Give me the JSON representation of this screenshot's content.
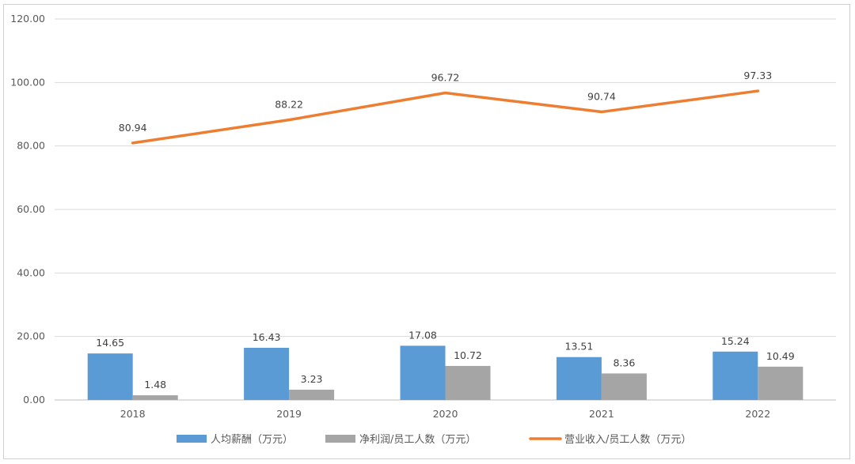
{
  "chart_data": {
    "type": "bar",
    "categories": [
      "2018",
      "2019",
      "2020",
      "2021",
      "2022"
    ],
    "series": [
      {
        "name": "人均薪酬（万元）",
        "kind": "bar",
        "color": "#5b9bd5",
        "values": [
          14.65,
          16.43,
          17.08,
          13.51,
          15.24
        ],
        "labels": [
          "14.65",
          "16.43",
          "17.08",
          "13.51",
          "15.24"
        ]
      },
      {
        "name": "净利润/员工人数（万元）",
        "kind": "bar",
        "color": "#a5a5a5",
        "values": [
          1.48,
          3.23,
          10.72,
          8.36,
          10.49
        ],
        "labels": [
          "1.48",
          "3.23",
          "10.72",
          "8.36",
          "10.49"
        ]
      },
      {
        "name": "营业收入/员工人数（万元）",
        "kind": "line",
        "color": "#ed7d31",
        "values": [
          80.94,
          88.22,
          96.72,
          90.74,
          97.33
        ],
        "labels": [
          "80.94",
          "88.22",
          "96.72",
          "90.74",
          "97.33"
        ]
      }
    ],
    "ylim": [
      0,
      120
    ],
    "yticks": [
      "0.00",
      "20.00",
      "40.00",
      "60.00",
      "80.00",
      "100.00",
      "120.00"
    ],
    "grid": true,
    "legend_position": "bottom"
  }
}
